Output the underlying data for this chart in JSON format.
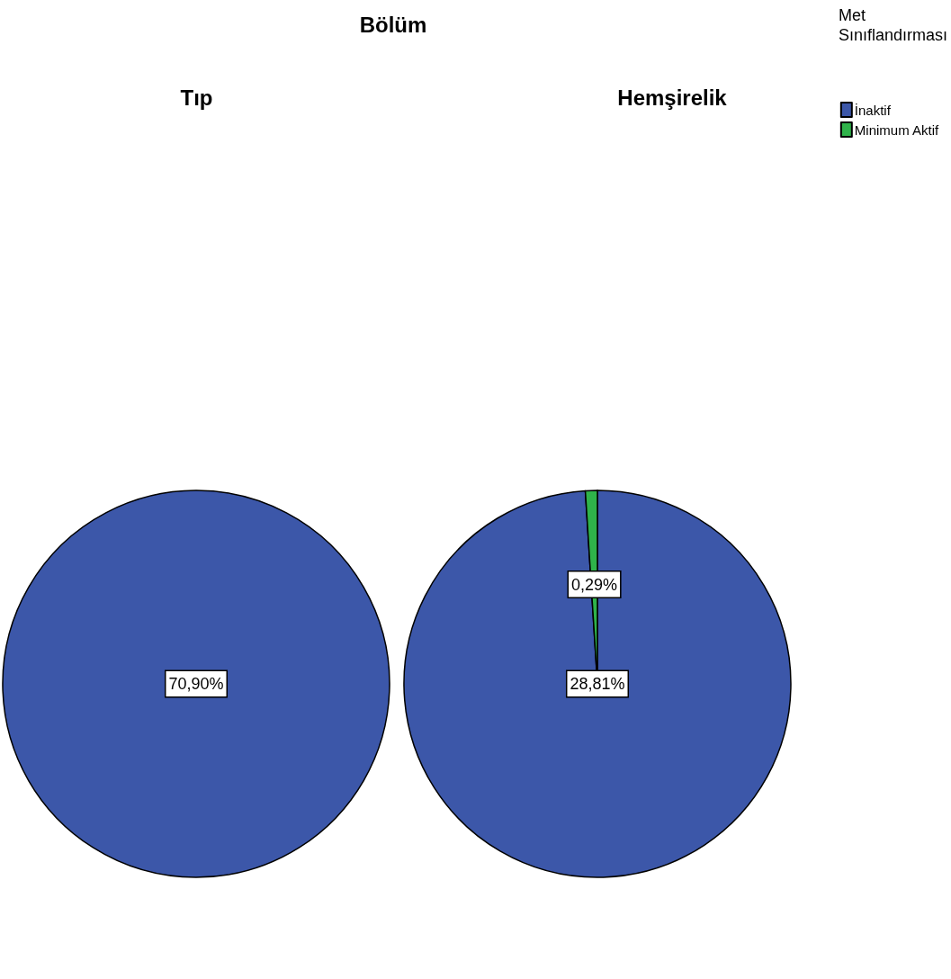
{
  "chart_data": [
    {
      "type": "pie",
      "title": "Tıp",
      "annotations": [
        "Bölüm"
      ],
      "categories": [
        null
      ],
      "values": [
        70.9
      ],
      "colors": [
        "#3c57a9"
      ],
      "value_labels": [
        "70,90%"
      ],
      "legend": false
    },
    {
      "type": "pie",
      "title": "Hemşirelik",
      "legend_title": "Met Sınıflandırması",
      "legend": "top right",
      "categories": [
        "İnaktif",
        "Minimum Aktif"
      ],
      "values": [
        28.81,
        0.29
      ],
      "colors": [
        "#3c57a9",
        "#2fb34a"
      ],
      "value_labels": [
        "28,81%",
        "0,29%"
      ]
    }
  ]
}
